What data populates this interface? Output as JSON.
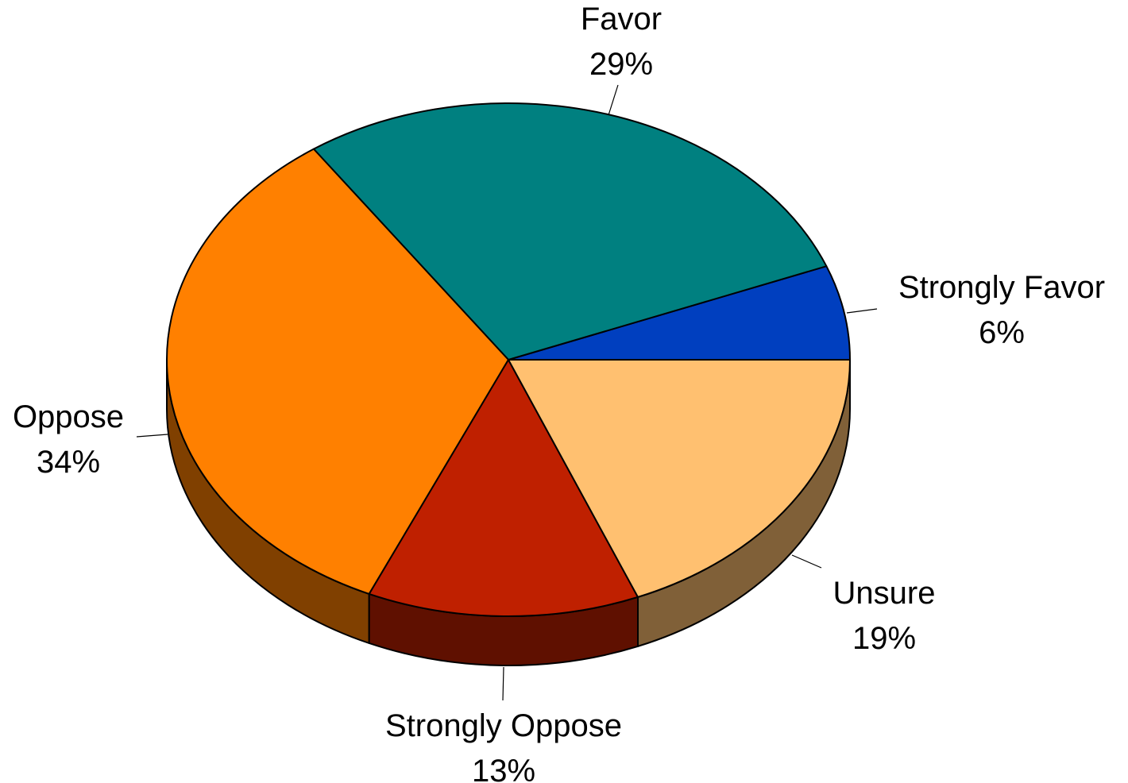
{
  "chart_data": {
    "type": "pie",
    "title": "",
    "slices": [
      {
        "label": "Strongly Favor",
        "value": 6,
        "value_label": "6%",
        "color": "#003fbf",
        "side_color": "#00205f"
      },
      {
        "label": "Favor",
        "value": 29,
        "value_label": "29%",
        "color": "#008080",
        "side_color": "#004040"
      },
      {
        "label": "Oppose",
        "value": 34,
        "value_label": "34%",
        "color": "#ff8000",
        "side_color": "#804000"
      },
      {
        "label": "Strongly Oppose",
        "value": 13,
        "value_label": "13%",
        "color": "#bf2000",
        "side_color": "#5f1000"
      },
      {
        "label": "Unsure",
        "value": 19,
        "value_label": "19%",
        "color": "#ffc070",
        "side_color": "#806038"
      }
    ],
    "direction": "counterclockwise",
    "start_angle_deg": 0,
    "style": "3d-tilted",
    "legend": "none",
    "labels": "outside-with-leader-lines"
  }
}
